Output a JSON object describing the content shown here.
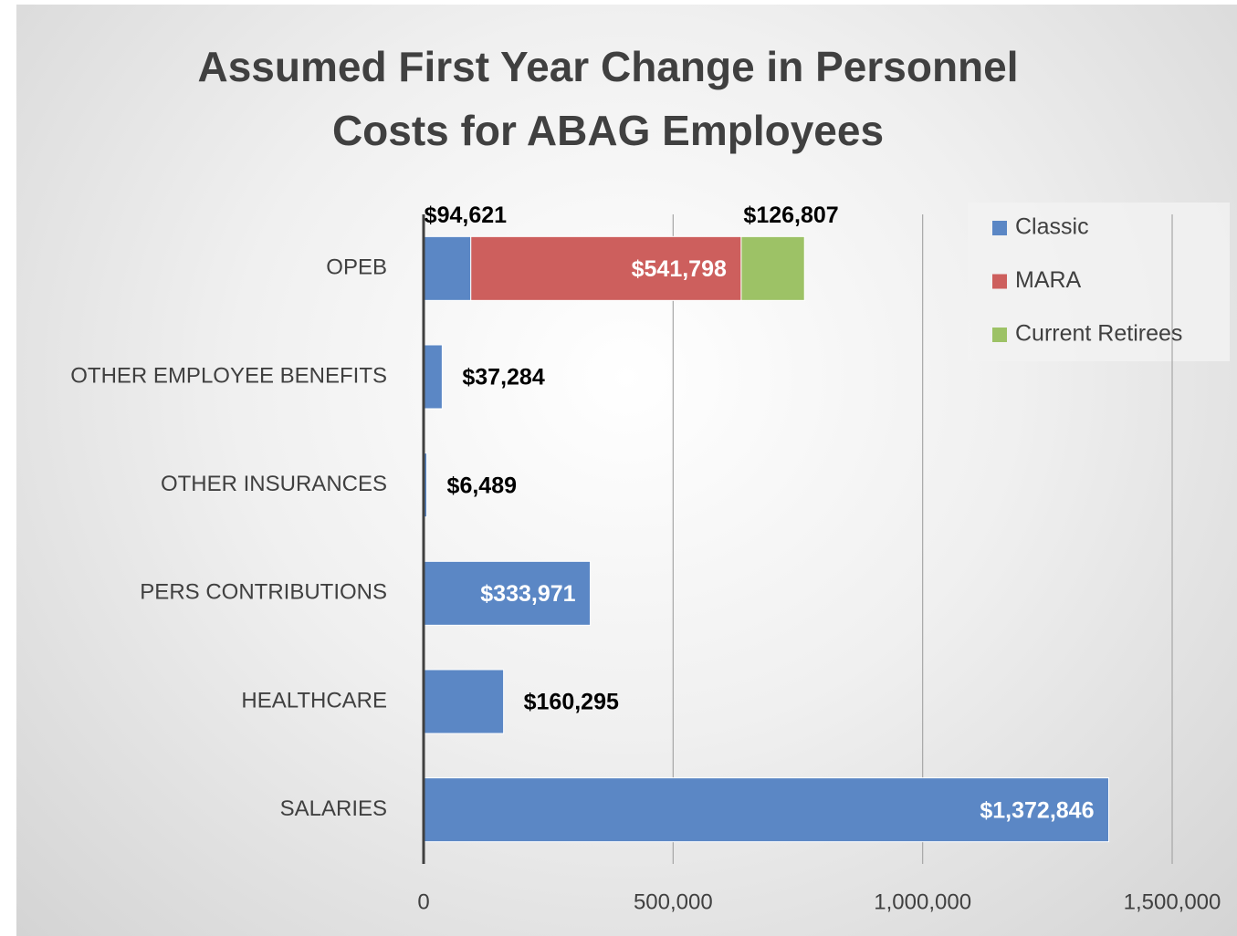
{
  "chart_data": {
    "type": "bar",
    "orientation": "horizontal",
    "stacked": true,
    "title": "Assumed First Year Change in Personnel Costs for ABAG Employees",
    "categories": [
      "OPEB",
      "OTHER EMPLOYEE BENEFITS",
      "OTHER INSURANCES",
      "PERS CONTRIBUTIONS",
      "HEALTHCARE",
      "SALARIES"
    ],
    "series": [
      {
        "name": "Classic",
        "color": "#5b87c5",
        "values": [
          94621,
          37284,
          6489,
          333971,
          160295,
          1372846
        ],
        "value_labels": [
          "$94,621",
          "$37,284",
          "$6,489",
          "$333,971",
          "$160,295",
          "$1,372,846"
        ]
      },
      {
        "name": "MARA",
        "color": "#cd5f5d",
        "values": [
          541798,
          null,
          null,
          null,
          null,
          null
        ],
        "value_labels": [
          "$541,798",
          null,
          null,
          null,
          null,
          null
        ]
      },
      {
        "name": "Current Retirees",
        "color": "#9dc266",
        "values": [
          126807,
          null,
          null,
          null,
          null,
          null
        ],
        "value_labels": [
          "$126,807",
          null,
          null,
          null,
          null,
          null
        ]
      }
    ],
    "xlim": [
      0,
      1500000
    ],
    "xticks": [
      0,
      {
        "value": 500000,
        "label": "500,000"
      },
      {
        "value": 1000000,
        "label": "1,000,000"
      },
      {
        "value": 1500000,
        "label": "1,500,000"
      }
    ],
    "grid": true,
    "legend": "top-right"
  }
}
